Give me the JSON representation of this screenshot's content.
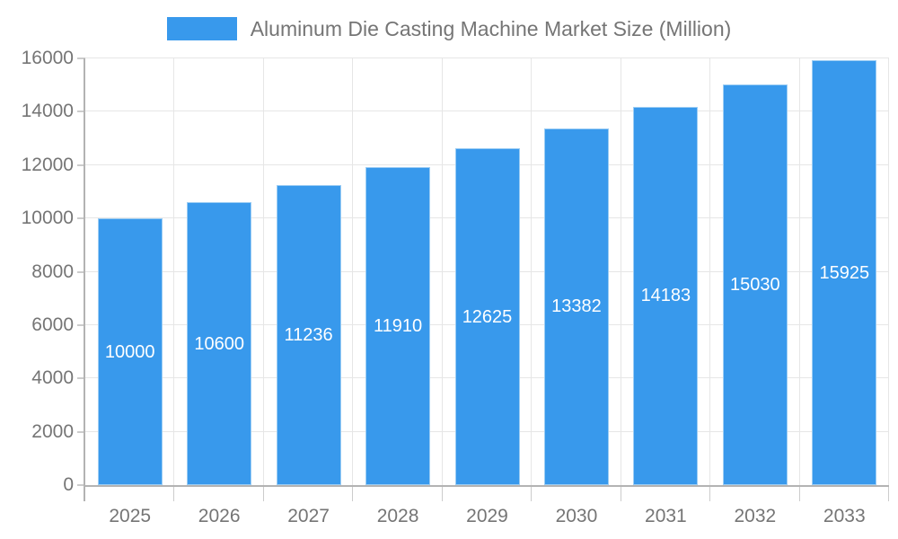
{
  "chart_data": {
    "type": "bar",
    "title": "Aluminum Die Casting Machine Market Size (Million)",
    "categories": [
      "2025",
      "2026",
      "2027",
      "2028",
      "2029",
      "2030",
      "2031",
      "2032",
      "2033"
    ],
    "series": [
      {
        "name": "Aluminum Die Casting Machine Market Size (Million)",
        "values": [
          10000,
          10600,
          11236,
          11910,
          12625,
          13382,
          14183,
          15030,
          15925
        ]
      }
    ],
    "value_labels_shown": true,
    "xlabel": "",
    "ylabel": "",
    "ylim": [
      0,
      16000
    ],
    "ytick_step": 2000,
    "yticks": [
      0,
      2000,
      4000,
      6000,
      8000,
      10000,
      12000,
      14000,
      16000
    ],
    "grid": true,
    "legend_position": "top"
  },
  "colors": {
    "bar": "#3899ec",
    "bar_border": "#9ccdf4",
    "value_label": "#ffffff",
    "axis_text": "#757575",
    "axis_line": "#b3b3b3",
    "tick_line": "#cccccc",
    "grid_line": "#e6e6e6",
    "background": "#ffffff"
  }
}
